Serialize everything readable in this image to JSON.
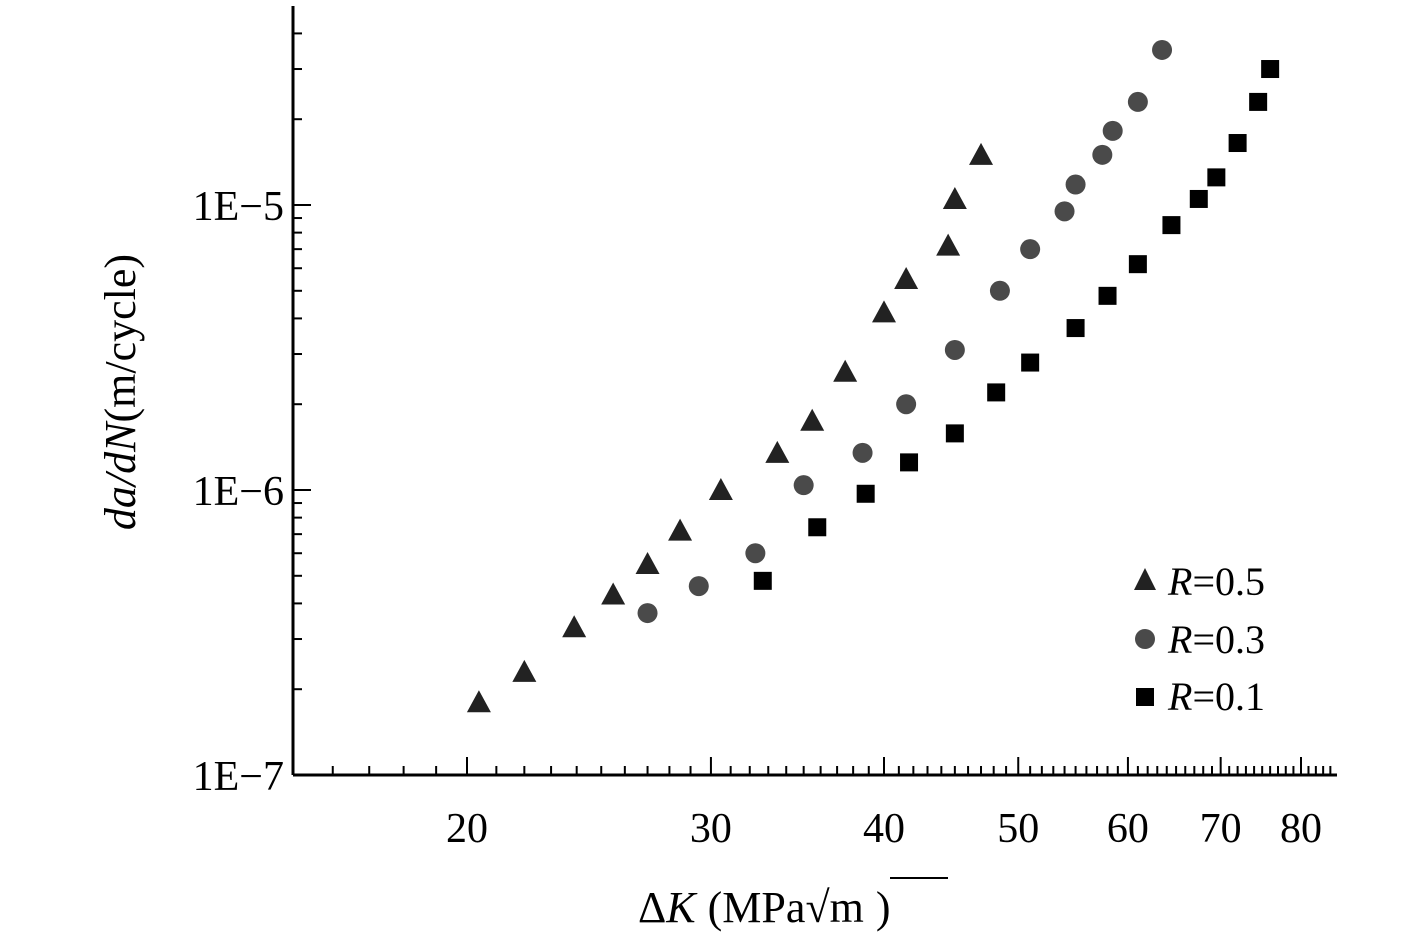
{
  "chart_data": {
    "type": "scatter",
    "x_scale": "log",
    "y_scale": "log",
    "xlim": [
      15,
      85
    ],
    "ylim": [
      1e-07,
      5e-05
    ],
    "x_ticks": [
      {
        "value": 20,
        "label": "20"
      },
      {
        "value": 30,
        "label": "30"
      },
      {
        "value": 40,
        "label": "40"
      },
      {
        "value": 50,
        "label": "50"
      },
      {
        "value": 60,
        "label": "60"
      },
      {
        "value": 70,
        "label": "70"
      },
      {
        "value": 80,
        "label": "80"
      }
    ],
    "y_ticks": [
      {
        "value": 1e-07,
        "label": "1E−7"
      },
      {
        "value": 1e-06,
        "label": "1E−6"
      },
      {
        "value": 1e-05,
        "label": "1E−5"
      }
    ],
    "xlabel": {
      "delta": "Δ",
      "var": "K",
      "units_open": "(MPa",
      "sqrt": "√",
      "radicand": "m",
      "units_close": ")"
    },
    "ylabel": {
      "var": "da/dN",
      "units": "(m/cycle)"
    },
    "legend_position": "lower-right",
    "series": [
      {
        "name": "R=0.5",
        "name_var": "R",
        "name_value": "=0.5",
        "marker": "triangle",
        "color": "#222222",
        "x": [
          20.4,
          22.0,
          23.9,
          25.5,
          27.0,
          28.5,
          30.5,
          33.5,
          35.5,
          37.5,
          40.0,
          41.5,
          44.5,
          45.0,
          47.0
        ],
        "y": [
          1.8e-07,
          2.3e-07,
          3.3e-07,
          4.3e-07,
          5.5e-07,
          7.2e-07,
          1e-06,
          1.35e-06,
          1.75e-06,
          2.6e-06,
          4.2e-06,
          5.5e-06,
          7.2e-06,
          1.05e-05,
          1.5e-05
        ]
      },
      {
        "name": "R=0.3",
        "name_var": "R",
        "name_value": "=0.3",
        "marker": "circle",
        "color": "#4a4a4a",
        "x": [
          27.0,
          29.4,
          32.3,
          35.0,
          38.6,
          41.5,
          45.0,
          48.5,
          51.0,
          54.0,
          55.0,
          57.5,
          58.5,
          61.0,
          63.5
        ],
        "y": [
          3.7e-07,
          4.6e-07,
          6e-07,
          1.04e-06,
          1.35e-06,
          2e-06,
          3.1e-06,
          5e-06,
          7e-06,
          9.5e-06,
          1.18e-05,
          1.5e-05,
          1.82e-05,
          2.3e-05,
          3.5e-05
        ]
      },
      {
        "name": "R=0.1",
        "name_var": "R",
        "name_value": "=0.1",
        "marker": "square",
        "color": "#000000",
        "x": [
          32.7,
          35.8,
          38.8,
          41.7,
          45.0,
          48.2,
          51.0,
          55.0,
          58.0,
          61.0,
          64.5,
          67.5,
          69.5,
          72.0,
          74.5,
          76.0
        ],
        "y": [
          4.8e-07,
          7.4e-07,
          9.7e-07,
          1.25e-06,
          1.58e-06,
          2.2e-06,
          2.8e-06,
          3.7e-06,
          4.8e-06,
          6.2e-06,
          8.5e-06,
          1.05e-05,
          1.25e-05,
          1.65e-05,
          2.3e-05,
          3e-05
        ]
      }
    ]
  }
}
